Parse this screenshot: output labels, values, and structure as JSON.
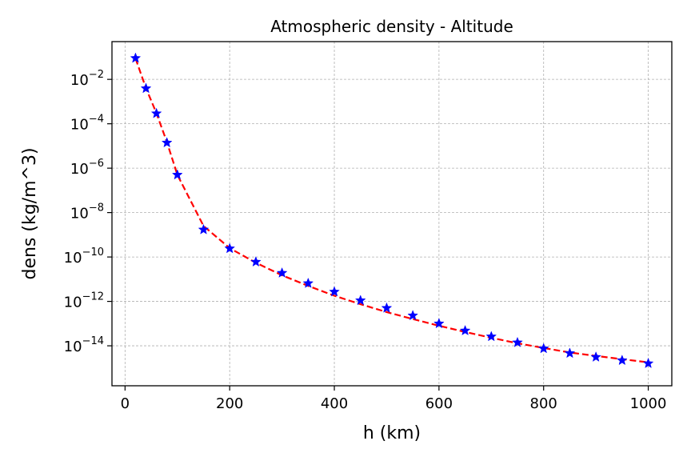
{
  "chart_data": {
    "type": "line",
    "title": "Atmospheric density - Altitude",
    "xlabel": "h (km)",
    "ylabel": "dens (kg/m^3)",
    "xlim": [
      -25,
      1045
    ],
    "ylim": [
      -15.8,
      -0.3
    ],
    "y_scale": "log",
    "grid": true,
    "x_ticks": [
      0,
      200,
      400,
      600,
      800,
      1000
    ],
    "x_tick_labels": [
      "0",
      "200",
      "400",
      "600",
      "800",
      "1000"
    ],
    "y_tick_exponents": [
      -2,
      -4,
      -6,
      -8,
      -10,
      -12,
      -14
    ],
    "y_tick_base": "10",
    "series": [
      {
        "style": "dashed-line",
        "color": "#ff0000",
        "x": [
          20,
          40,
          60,
          80,
          100,
          150,
          200,
          250,
          300,
          350,
          400,
          450,
          500,
          550,
          600,
          650,
          700,
          750,
          800,
          850,
          900,
          950,
          1000
        ],
        "y": [
          0.088,
          0.004,
          0.0003,
          1.5e-05,
          5e-07,
          2.5e-09,
          2.5e-10,
          5.5e-11,
          1.5e-11,
          5e-12,
          1.8e-12,
          7.5e-13,
          3.3e-13,
          1.6e-13,
          8e-14,
          4.2e-14,
          2.3e-14,
          1.3e-14,
          8e-15,
          5e-15,
          3.5e-15,
          2.5e-15,
          1.8e-15
        ]
      },
      {
        "style": "star-markers",
        "color": "#0000ff",
        "x": [
          20,
          40,
          60,
          80,
          100,
          150,
          200,
          250,
          300,
          350,
          400,
          450,
          500,
          550,
          600,
          650,
          700,
          750,
          800,
          850,
          900,
          950,
          1000
        ],
        "y": [
          0.09,
          0.0039,
          0.00029,
          1.4e-05,
          5e-07,
          1.7e-09,
          2.4e-10,
          6e-11,
          1.9e-11,
          6.5e-12,
          2.7e-12,
          1.1e-12,
          5e-13,
          2.3e-13,
          1e-13,
          4.8e-14,
          2.6e-14,
          1.4e-14,
          7.5e-15,
          4.6e-15,
          3.1e-15,
          2.2e-15,
          1.6e-15
        ]
      }
    ]
  }
}
